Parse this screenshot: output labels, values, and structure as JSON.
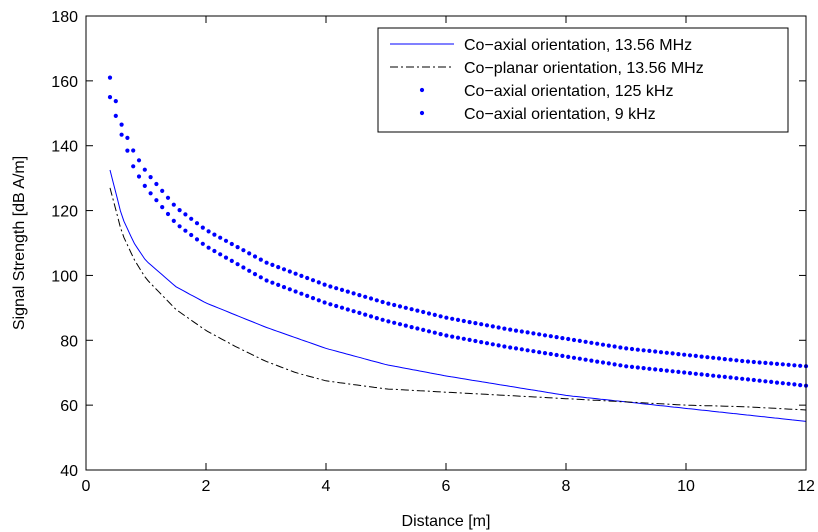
{
  "chart_data": {
    "type": "line",
    "xlabel": "Distance [m]",
    "ylabel": "Signal Strength [dB   A/m]",
    "xlim": [
      0,
      12
    ],
    "ylim": [
      40,
      180
    ],
    "xticks": [
      0,
      2,
      4,
      6,
      8,
      10,
      12
    ],
    "yticks": [
      40,
      60,
      80,
      100,
      120,
      140,
      160,
      180
    ],
    "grid": false,
    "legend_position": "top-right",
    "series": [
      {
        "name": "Co−axial orientation, 13.56 MHz",
        "style": "solid",
        "color": "#0000ff",
        "x": [
          0.4,
          0.6,
          0.8,
          1.0,
          1.5,
          2.0,
          3.0,
          4.0,
          5.0,
          6.0,
          7.0,
          8.0,
          9.0,
          10.0,
          11.0,
          12.0
        ],
        "y": [
          132.5,
          118.0,
          110.0,
          104.5,
          96.5,
          91.5,
          84.0,
          77.5,
          72.5,
          69.0,
          66.0,
          63.0,
          61.0,
          59.0,
          57.0,
          55.0
        ]
      },
      {
        "name": "Co−planar orientation, 13.56 MHz",
        "style": "dashdot",
        "color": "#000000",
        "x": [
          0.4,
          0.6,
          0.8,
          1.0,
          1.5,
          2.0,
          2.5,
          3.0,
          3.5,
          4.0,
          5.0,
          6.0,
          7.0,
          8.0,
          9.0,
          10.0,
          11.0,
          12.0
        ],
        "y": [
          127.0,
          113.0,
          105.0,
          99.0,
          89.5,
          83.0,
          78.0,
          73.5,
          70.0,
          67.5,
          65.0,
          64.0,
          63.0,
          62.0,
          61.0,
          60.0,
          59.5,
          58.5
        ]
      },
      {
        "name": "Co−axial orientation, 125 kHz",
        "style": "dotted",
        "color": "#0000ff",
        "x": [
          0.4,
          0.6,
          0.8,
          1.0,
          1.5,
          2.0,
          3.0,
          4.0,
          5.0,
          6.0,
          7.0,
          8.0,
          9.0,
          10.0,
          11.0,
          12.0
        ],
        "y": [
          161.0,
          146.0,
          138.0,
          132.0,
          121.0,
          114.0,
          104.0,
          97.0,
          91.5,
          87.0,
          83.5,
          80.5,
          77.5,
          75.5,
          73.5,
          72.0
        ]
      },
      {
        "name": "Co−axial orientation, 9 kHz",
        "style": "dotted",
        "color": "#0000ff",
        "x": [
          0.4,
          0.6,
          0.8,
          1.0,
          1.5,
          2.0,
          3.0,
          4.0,
          5.0,
          6.0,
          7.0,
          8.0,
          9.0,
          10.0,
          11.0,
          12.0
        ],
        "y": [
          155.0,
          143.0,
          133.0,
          127.0,
          116.0,
          109.0,
          98.5,
          91.5,
          86.0,
          81.5,
          78.0,
          75.0,
          72.0,
          70.0,
          68.0,
          66.0
        ]
      }
    ]
  }
}
